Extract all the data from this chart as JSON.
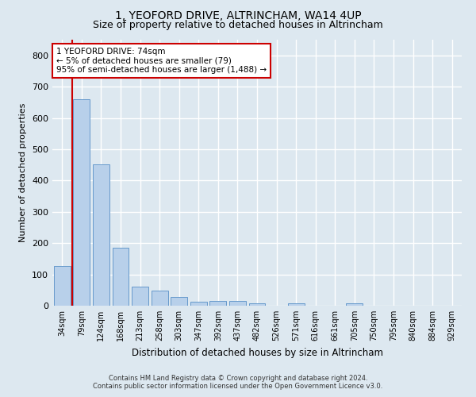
{
  "title1": "1, YEOFORD DRIVE, ALTRINCHAM, WA14 4UP",
  "title2": "Size of property relative to detached houses in Altrincham",
  "xlabel": "Distribution of detached houses by size in Altrincham",
  "ylabel": "Number of detached properties",
  "categories": [
    "34sqm",
    "79sqm",
    "124sqm",
    "168sqm",
    "213sqm",
    "258sqm",
    "303sqm",
    "347sqm",
    "392sqm",
    "437sqm",
    "482sqm",
    "526sqm",
    "571sqm",
    "616sqm",
    "661sqm",
    "705sqm",
    "750sqm",
    "795sqm",
    "840sqm",
    "884sqm",
    "929sqm"
  ],
  "values": [
    127,
    660,
    452,
    185,
    62,
    47,
    29,
    13,
    15,
    15,
    8,
    0,
    8,
    0,
    0,
    8,
    0,
    0,
    0,
    0,
    0
  ],
  "bar_color": "#b8d0ea",
  "bar_edge_color": "#6699cc",
  "vline_color": "#cc0000",
  "annotation_title": "1 YEOFORD DRIVE: 74sqm",
  "annotation_line1": "← 5% of detached houses are smaller (79)",
  "annotation_line2": "95% of semi-detached houses are larger (1,488) →",
  "annotation_box_color": "#ffffff",
  "annotation_border_color": "#cc0000",
  "ylim": [
    0,
    850
  ],
  "yticks": [
    0,
    100,
    200,
    300,
    400,
    500,
    600,
    700,
    800
  ],
  "footer1": "Contains HM Land Registry data © Crown copyright and database right 2024.",
  "footer2": "Contains public sector information licensed under the Open Government Licence v3.0.",
  "background_color": "#dde8f0",
  "plot_bg_color": "#dde8f0",
  "grid_color": "#ffffff",
  "title1_fontsize": 10,
  "title2_fontsize": 9
}
